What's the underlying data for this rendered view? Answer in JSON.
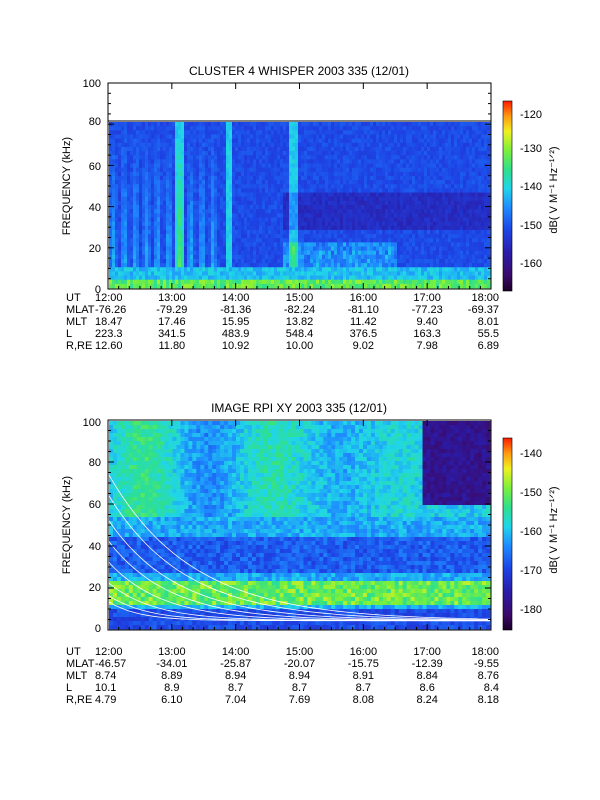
{
  "chart_data": [
    {
      "type": "heatmap",
      "title": "CLUSTER 4 WHISPER 2003 335 (12/01)",
      "ylabel": "FREQUENCY (kHz)",
      "ylim": [
        0,
        100
      ],
      "yticks": [
        "0",
        "20",
        "40",
        "60",
        "80",
        "100"
      ],
      "data_ylim": [
        0,
        80
      ],
      "xlim": [
        "12:00",
        "18:00"
      ],
      "colorbar": {
        "label": "dB( V M⁻¹ Hz⁻¹ᐟ²)",
        "range": [
          -167,
          -117
        ],
        "ticks": [
          "-120",
          "-130",
          "-140",
          "-150",
          "-160"
        ]
      },
      "ephemeris": {
        "row_labels": [
          "UT",
          "MLAT",
          "MLT",
          "L",
          "R,RE"
        ],
        "columns": [
          [
            "12:00",
            "-76.26",
            "18.47",
            "223.3",
            "12.60"
          ],
          [
            "13:00",
            "-79.29",
            "17.46",
            "341.5",
            "11.80"
          ],
          [
            "14:00",
            "-81.36",
            "15.95",
            "483.9",
            "10.92"
          ],
          [
            "15:00",
            "-82.24",
            "13.82",
            "548.4",
            "10.00"
          ],
          [
            "16:00",
            "-81.10",
            "11.42",
            "376.5",
            "9.02"
          ],
          [
            "17:00",
            "-77.23",
            "9.40",
            "163.3",
            "7.98"
          ],
          [
            "18:00",
            "-69.37",
            "8.01",
            "55.5",
            "6.89"
          ]
        ]
      }
    },
    {
      "type": "heatmap",
      "title": "IMAGE RPI XY 2003 335 (12/01)",
      "ylabel": "FREQUENCY (kHz)",
      "ylim": [
        0,
        100
      ],
      "yticks": [
        "0",
        "20",
        "40",
        "60",
        "80",
        "100"
      ],
      "xlim": [
        "12:00",
        "18:00"
      ],
      "colorbar": {
        "label": "dB( V M⁻¹ Hz⁻¹ᐟ²)",
        "range": [
          -186,
          -136
        ],
        "ticks": [
          "-140",
          "-150",
          "-160",
          "-170",
          "-180"
        ]
      },
      "ephemeris": {
        "row_labels": [
          "UT",
          "MLAT",
          "MLT",
          "L",
          "R,RE"
        ],
        "columns": [
          [
            "12:00",
            "-46.57",
            "8.74",
            "10.1",
            "4.79"
          ],
          [
            "13:00",
            "-34.01",
            "8.89",
            "8.9",
            "6.10"
          ],
          [
            "14:00",
            "-25.87",
            "8.94",
            "8.7",
            "7.04"
          ],
          [
            "15:00",
            "-20.07",
            "8.94",
            "8.7",
            "7.69"
          ],
          [
            "16:00",
            "-15.75",
            "8.91",
            "8.7",
            "8.08"
          ],
          [
            "17:00",
            "-12.39",
            "8.84",
            "8.6",
            "8.24"
          ],
          [
            "18:00",
            "-9.55",
            "8.76",
            "8.4",
            "8.18"
          ]
        ]
      }
    }
  ]
}
